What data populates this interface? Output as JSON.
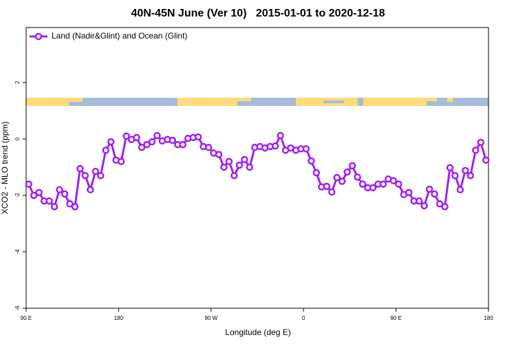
{
  "chart_data": {
    "type": "line",
    "title": "40N-45N June (Ver 10)   2015-01-01 to 2020-12-18",
    "xlabel": "Longitude (deg E)",
    "ylabel": "XCO2 - MLO trend (ppm)",
    "xlim": [
      90,
      540
    ],
    "ylim": [
      -6,
      3.95
    ],
    "xticks": [
      {
        "value": 90,
        "label": "90 E"
      },
      180,
      {
        "value": 270,
        "label": "90 W"
      },
      {
        "value": 360,
        "label": "0"
      },
      {
        "value": 450,
        "label": "90 E"
      },
      {
        "value": 540,
        "label": "180"
      }
    ],
    "yticks": [
      -6,
      -4,
      -2,
      0,
      2
    ],
    "legend": "top-left",
    "x": [
      92.5,
      97.5,
      102.5,
      107.5,
      112.5,
      117.5,
      122.5,
      127.5,
      132.5,
      137.5,
      142.5,
      147.5,
      152.5,
      157.5,
      162.5,
      167.5,
      172.5,
      177.5,
      182.5,
      187.5,
      192.5,
      197.5,
      202.5,
      207.5,
      212.5,
      217.5,
      222.5,
      227.5,
      232.5,
      237.5,
      242.5,
      247.5,
      252.5,
      257.5,
      262.5,
      267.5,
      272.5,
      277.5,
      282.5,
      287.5,
      292.5,
      297.5,
      302.5,
      307.5,
      312.5,
      317.5,
      322.5,
      327.5,
      332.5,
      337.5,
      342.5,
      347.5,
      352.5,
      357.5,
      362.5,
      367.5,
      372.5,
      377.5,
      382.5,
      387.5,
      392.5,
      397.5,
      402.5,
      407.5,
      412.5,
      417.5,
      422.5,
      427.5,
      432.5,
      437.5,
      442.5,
      447.5,
      452.5,
      457.5,
      462.5,
      467.5,
      472.5,
      477.5,
      482.5,
      487.5,
      492.5,
      497.5,
      502.5,
      507.5,
      512.5,
      517.5,
      522.5,
      527.5,
      532.5,
      537.5
    ],
    "series": [
      {
        "name": "Land (Nadir&Glint) and Ocean (Glint)",
        "color": "#a020f0",
        "values": [
          -1.6,
          -2.0,
          -1.9,
          -2.2,
          -2.2,
          -2.4,
          -1.8,
          -1.95,
          -2.3,
          -2.4,
          -1.05,
          -1.3,
          -1.8,
          -1.15,
          -1.3,
          -0.4,
          -0.1,
          -0.75,
          -0.8,
          0.1,
          -0.02,
          0.05,
          -0.3,
          -0.2,
          -0.1,
          0.12,
          -0.07,
          -0.02,
          -0.05,
          -0.2,
          -0.2,
          0.02,
          0.05,
          0.07,
          -0.27,
          -0.3,
          -0.5,
          -0.55,
          -1.0,
          -0.8,
          -1.3,
          -0.93,
          -0.73,
          -1.0,
          -0.3,
          -0.27,
          -0.32,
          -0.27,
          -0.25,
          0.12,
          -0.4,
          -0.32,
          -0.4,
          -0.35,
          -0.35,
          -0.78,
          -1.2,
          -1.7,
          -1.68,
          -1.88,
          -1.37,
          -1.5,
          -1.17,
          -0.95,
          -1.35,
          -1.6,
          -1.73,
          -1.73,
          -1.6,
          -1.6,
          -1.42,
          -1.48,
          -1.6,
          -1.97,
          -1.9,
          -2.2,
          -2.2,
          -2.37,
          -1.78,
          -1.95,
          -2.3,
          -2.4,
          -1.02,
          -1.3,
          -1.8,
          -1.12,
          -1.3,
          -0.4,
          -0.12,
          -0.75
        ]
      }
    ]
  }
}
